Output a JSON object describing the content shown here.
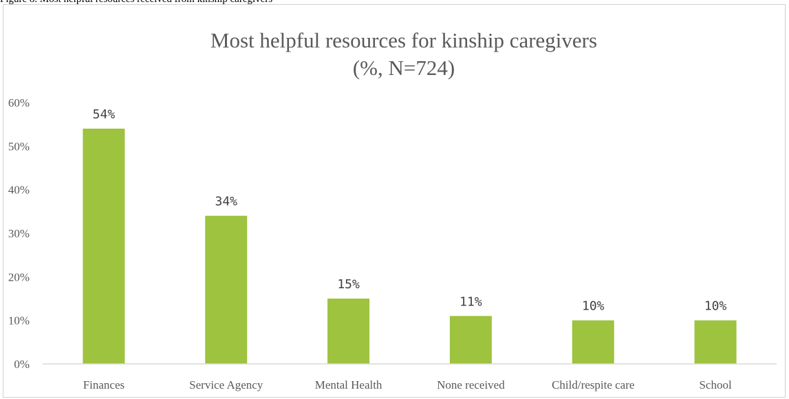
{
  "figure_caption": "Figure 8. Most helpful resources received from kinship caregivers",
  "chart_data": {
    "type": "bar",
    "title": "Most helpful resources for kinship caregivers",
    "subtitle": "(%, N=724)",
    "categories": [
      "Finances",
      "Service Agency",
      "Mental Health",
      "None received",
      "Child/respite care",
      "School"
    ],
    "values": [
      54,
      34,
      15,
      11,
      10,
      10
    ],
    "value_labels": [
      "54%",
      "34%",
      "15%",
      "11%",
      "10%",
      "10%"
    ],
    "y_ticks": [
      0,
      10,
      20,
      30,
      40,
      50,
      60
    ],
    "y_tick_labels": [
      "0%",
      "10%",
      "20%",
      "30%",
      "40%",
      "50%",
      "60%"
    ],
    "ylim": [
      0,
      60
    ],
    "xlabel": "",
    "ylabel": "",
    "grid": false,
    "legend": "none",
    "bar_color": "#9dc33f",
    "axis_color": "#d9d9d9",
    "text_color": "#595959"
  }
}
